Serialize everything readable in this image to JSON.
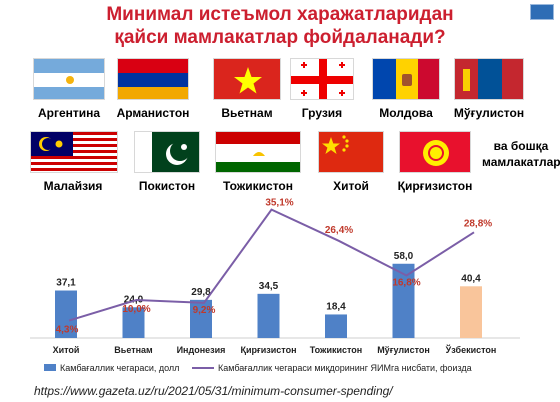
{
  "title_line1": "Минимал истеъмол харажатларидан",
  "title_line2": "қайси мамлакатлар фойдаланади?",
  "flags_row1": [
    {
      "name": "Аргентина",
      "icon": "argentina-flag"
    },
    {
      "name": "Арманистон",
      "icon": "armenia-flag"
    },
    {
      "name": "Вьетнам",
      "icon": "vietnam-flag"
    },
    {
      "name": "Грузия",
      "icon": "georgia-flag"
    },
    {
      "name": "Молдова",
      "icon": "moldova-flag"
    },
    {
      "name": "Мўғулистон",
      "icon": "mongolia-flag"
    }
  ],
  "flags_row2": [
    {
      "name": "Малайзия",
      "icon": "malaysia-flag"
    },
    {
      "name": "Покистон",
      "icon": "pakistan-flag"
    },
    {
      "name": "Тожикистон",
      "icon": "tajikistan-flag"
    },
    {
      "name": "Хитой",
      "icon": "china-flag"
    },
    {
      "name": "Қирғизистон",
      "icon": "kyrgyzstan-flag"
    }
  ],
  "side_note_line1": "ва бошқа",
  "side_note_line2": "мамлакатлар",
  "chart_data": {
    "type": "bar+line",
    "categories": [
      "Хитой",
      "Вьетнам",
      "Индонезия",
      "Қирғизистон",
      "Тожикистон",
      "Мўғулистон",
      "Ўзбекистон"
    ],
    "series": [
      {
        "name": "Камбағаллик чегараси, долл",
        "type": "bar",
        "values": [
          37.1,
          24.0,
          29.8,
          34.5,
          18.4,
          58.0,
          40.4
        ],
        "labels": [
          "37,1",
          "24,0",
          "29,8",
          "34,5",
          "18,4",
          "58,0",
          "40,4"
        ],
        "color": "#4f81c7",
        "highlight_color": "#f9c59b",
        "highlight_index": 6
      },
      {
        "name": "Камбағаллик чегараси миқдорининг ЯИМга нисбати, фоизда",
        "type": "line",
        "values": [
          4.3,
          10.0,
          9.2,
          35.1,
          26.4,
          16.8,
          28.8
        ],
        "labels": [
          "4,3%",
          "10,0%",
          "9,2%",
          "35,1%",
          "26,4%",
          "16,8%",
          "28,8%"
        ],
        "color": "#7b5ea7",
        "label_color": "#c0392b"
      }
    ],
    "grid": false,
    "legend": "bottom"
  },
  "source": "https://www.gazeta.uz/ru/2021/05/31/minimum-consumer-spending/"
}
